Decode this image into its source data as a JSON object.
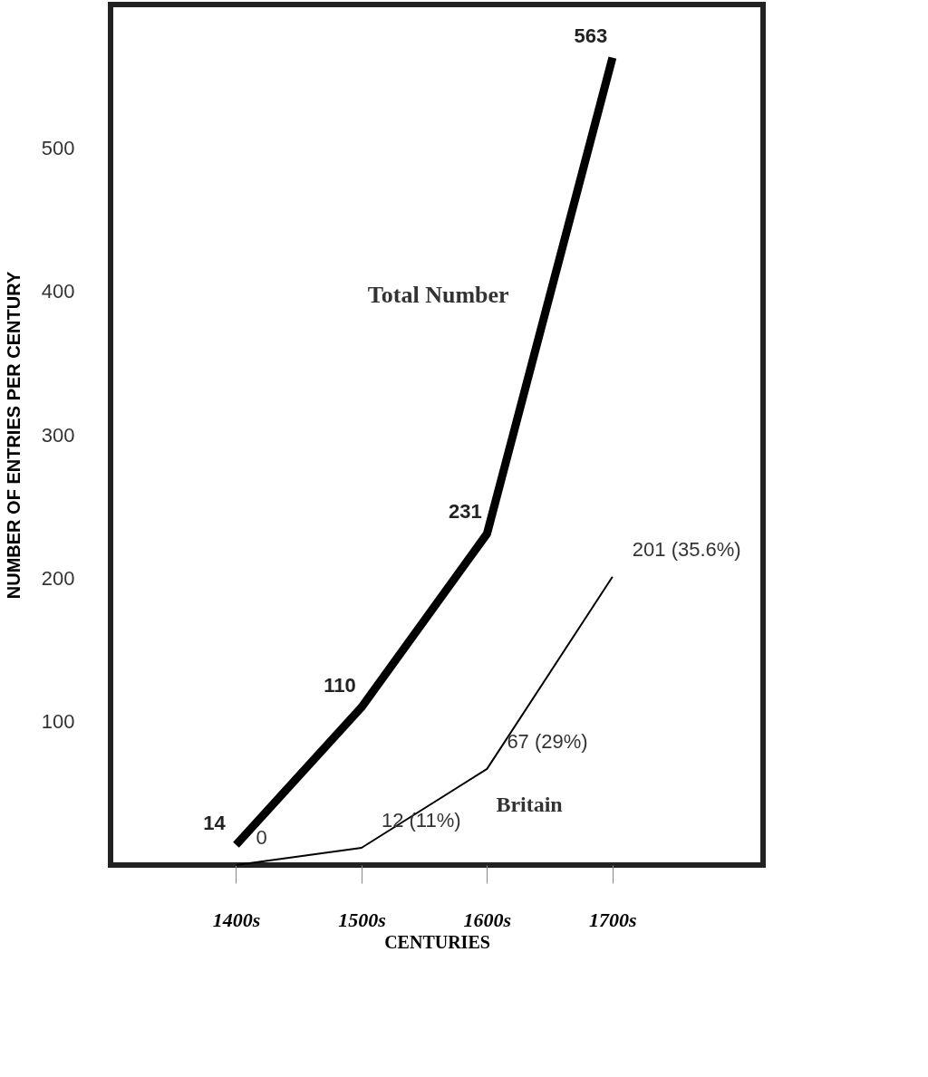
{
  "chart_data": {
    "type": "line",
    "xlabel": "CENTURIES",
    "ylabel": "NUMBER OF ENTRIES PER CENTURY",
    "categories": [
      "1400s",
      "1500s",
      "1600s",
      "1700s"
    ],
    "series": [
      {
        "name": "Total Number",
        "color": "#000000",
        "values": [
          14,
          110,
          231,
          563
        ],
        "value_labels": [
          "14",
          "110",
          "231",
          "563"
        ]
      },
      {
        "name": "Britain",
        "color": "#000000",
        "values": [
          0,
          12,
          67,
          201
        ],
        "value_labels": [
          "0",
          "12 (11%)",
          "67 (29%)",
          "201 (35.6%)"
        ]
      }
    ],
    "ylim": [
      0,
      600
    ],
    "yticks": [
      100,
      200,
      300,
      400,
      500
    ],
    "grid": false,
    "marker": "none",
    "line_style": "solid"
  }
}
